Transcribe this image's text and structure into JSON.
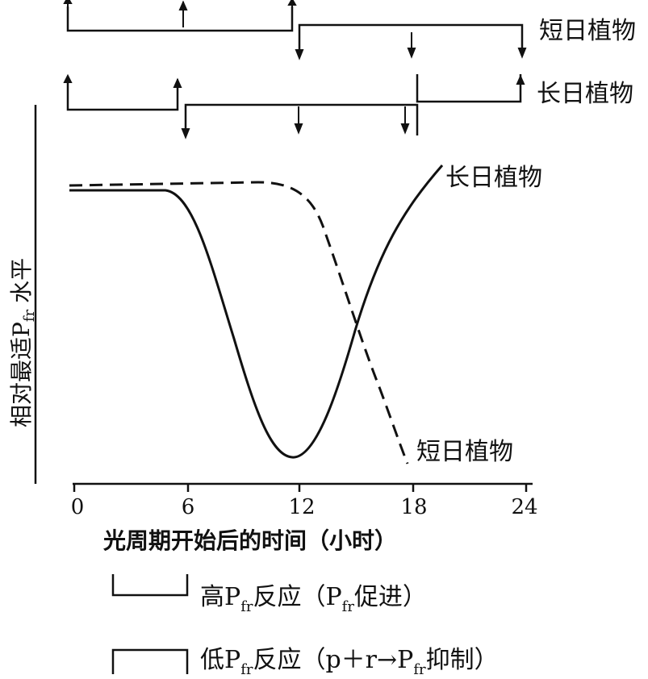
{
  "rows": [
    {
      "label": "短日植物"
    },
    {
      "label": "长日植物"
    }
  ],
  "chart": {
    "y_axis_label": "相对最适P",
    "y_axis_label_sub": "fr",
    "y_axis_label_tail": "水平",
    "x_axis_label": "光周期开始后的时间（小时）",
    "x_ticks": [
      "0",
      "6",
      "12",
      "18",
      "24"
    ],
    "curve_labels": {
      "long_day": "长日植物",
      "short_day": "短日植物"
    }
  },
  "legend": [
    {
      "prefix": "高P",
      "sub": "fr",
      "mid": "反应（P",
      "sub2": "fr",
      "suffix": "促进）"
    },
    {
      "prefix": "低P",
      "sub": "fr",
      "mid": "反应（p＋r→P",
      "sub2": "fr",
      "suffix": "抑制）"
    }
  ]
}
